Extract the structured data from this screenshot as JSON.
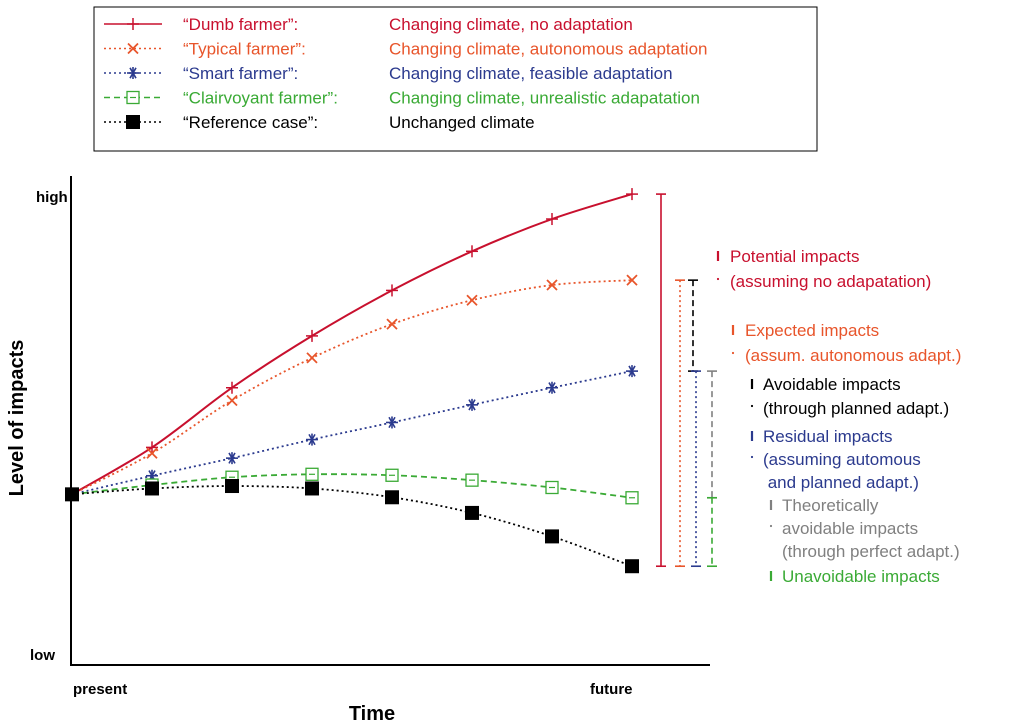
{
  "chart_data": {
    "type": "line",
    "title": "",
    "xlabel": "Time",
    "ylabel": "Level of impacts",
    "x_ticks": [
      "present",
      "future"
    ],
    "y_ticks": [
      "low",
      "high"
    ],
    "grid": false,
    "legend_placement": "top",
    "x": [
      0,
      1,
      2,
      3,
      4,
      5,
      6,
      7
    ],
    "ylim": [
      0,
      1
    ],
    "series": [
      {
        "name": "“Dumb farmer”:",
        "description": "Changing climate, no adaptation",
        "color": "#c8102e",
        "line_style": "solid",
        "marker": "plus",
        "values": [
          0.349,
          0.445,
          0.567,
          0.673,
          0.766,
          0.846,
          0.912,
          0.963
        ]
      },
      {
        "name": "“Typical farmer”:",
        "description": "Changing climate, autonomous adaptation",
        "color": "#e8552b",
        "line_style": "dotted",
        "marker": "x",
        "values": [
          0.349,
          0.433,
          0.541,
          0.628,
          0.697,
          0.746,
          0.777,
          0.787
        ]
      },
      {
        "name": "“Smart farmer”:",
        "description": "Changing climate, feasible adaptation",
        "color": "#2b3a8e",
        "line_style": "dotted",
        "marker": "asterisk",
        "values": [
          0.349,
          0.387,
          0.423,
          0.461,
          0.496,
          0.532,
          0.567,
          0.601
        ]
      },
      {
        "name": "“Clairvoyant farmer”:",
        "description": "Changing climate, unrealistic adapatation",
        "color": "#3aaa35",
        "line_style": "dashed",
        "marker": "open-square",
        "values": [
          0.349,
          0.368,
          0.384,
          0.39,
          0.388,
          0.378,
          0.363,
          0.342
        ]
      },
      {
        "name": "“Reference case”:",
        "description": "Unchanged climate",
        "color": "#000000",
        "line_style": "dotted",
        "marker": "filled-square",
        "values": [
          0.349,
          0.361,
          0.366,
          0.361,
          0.343,
          0.311,
          0.263,
          0.202
        ]
      }
    ],
    "annotations": [
      {
        "lines": [
          "Potential impacts",
          "(assuming no adapatation)"
        ],
        "color": "#c8102e",
        "bar_style": "solid",
        "bar_from": 0.202,
        "bar_to": 0.963
      },
      {
        "lines": [
          "Expected impacts",
          "(assum. autonomous adapt.)"
        ],
        "color": "#e8552b",
        "bar_style": "dotted",
        "bar_from": 0.202,
        "bar_to": 0.787
      },
      {
        "lines": [
          "Avoidable impacts",
          "(through planned adapt.)"
        ],
        "color": "#000000",
        "bar_style": "dashed",
        "bar_from": 0.601,
        "bar_to": 0.787
      },
      {
        "lines": [
          "Residual impacts",
          "(assuming automous",
          " and planned adapt.)"
        ],
        "color": "#2b3a8e",
        "bar_style": "dotted",
        "bar_from": 0.202,
        "bar_to": 0.601
      },
      {
        "lines": [
          "Theoretically",
          "avoidable impacts",
          "(through perfect adapt.)"
        ],
        "color": "#808080",
        "bar_style": "dashed",
        "bar_from": 0.342,
        "bar_to": 0.601
      },
      {
        "lines": [
          "Unavoidable impacts"
        ],
        "color": "#3aaa35",
        "bar_style": "dashed",
        "bar_from": 0.202,
        "bar_to": 0.342
      }
    ]
  }
}
